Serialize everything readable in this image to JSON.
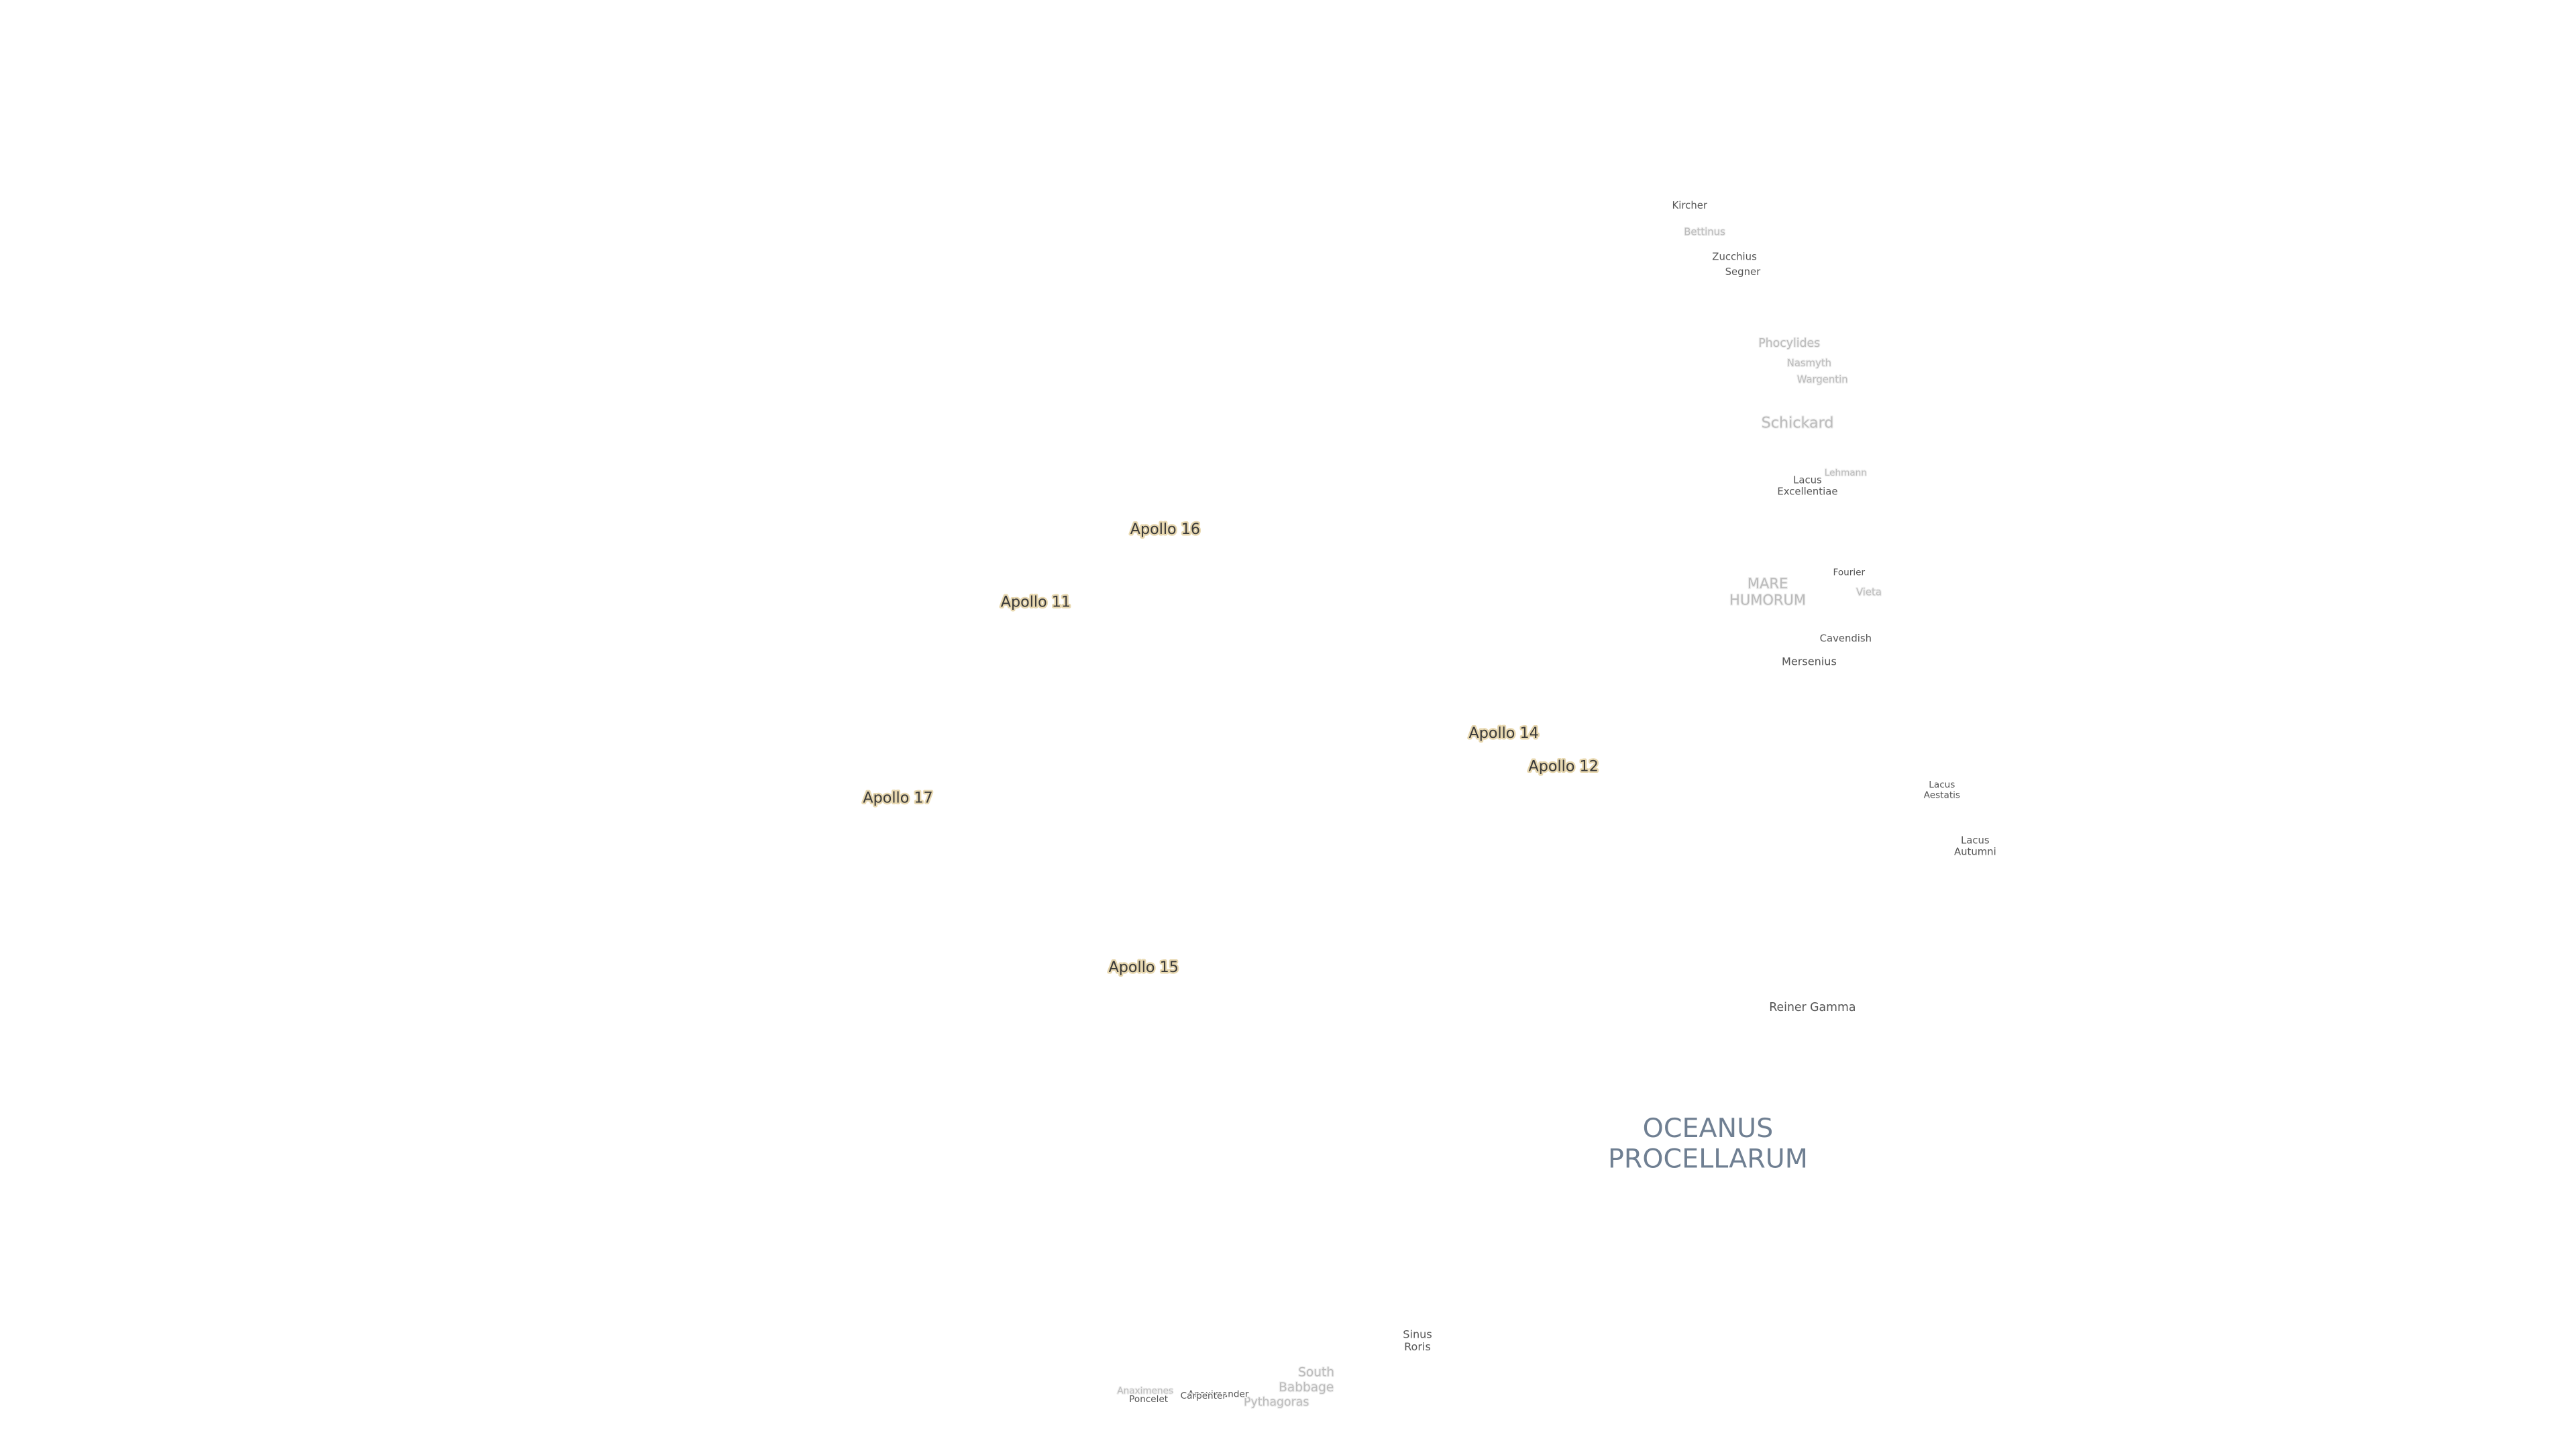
{
  "labels": [
    [
      "Kircher"
    ],
    [
      "Bettinus"
    ],
    [
      "Zucchius"
    ],
    [
      "Segner"
    ],
    [
      "Phocylides"
    ],
    [
      "Nasmyth"
    ],
    [
      "Wargentin"
    ],
    [
      "Schickard"
    ],
    [
      "Lehmann"
    ],
    [
      "Lacus",
      "Excellentiae"
    ],
    [
      "MARE",
      "HUMORUM"
    ],
    [
      "Fourier"
    ],
    [
      "Vieta"
    ],
    [
      "Cavendish"
    ],
    [
      "Mersenius"
    ],
    [
      "Apollo 16"
    ],
    [
      "Apollo 11"
    ],
    [
      "Apollo 14"
    ],
    [
      "Apollo 12"
    ],
    [
      "Apollo 17"
    ],
    [
      "Apollo 15"
    ],
    [
      "Lacus",
      "Aestatis"
    ],
    [
      "Lacus",
      "Autumni"
    ],
    [
      "Reiner Gamma"
    ],
    [
      "OCEANUS",
      "PROCELLARUM"
    ],
    [
      "Sinus",
      "Roris"
    ],
    [
      "South"
    ],
    [
      "Babbage"
    ],
    [
      "Pythagoras"
    ],
    [
      "Anaximenes"
    ],
    [
      "Poncelet"
    ],
    [
      "Anaximander"
    ],
    [
      "Carpenter"
    ]
  ]
}
